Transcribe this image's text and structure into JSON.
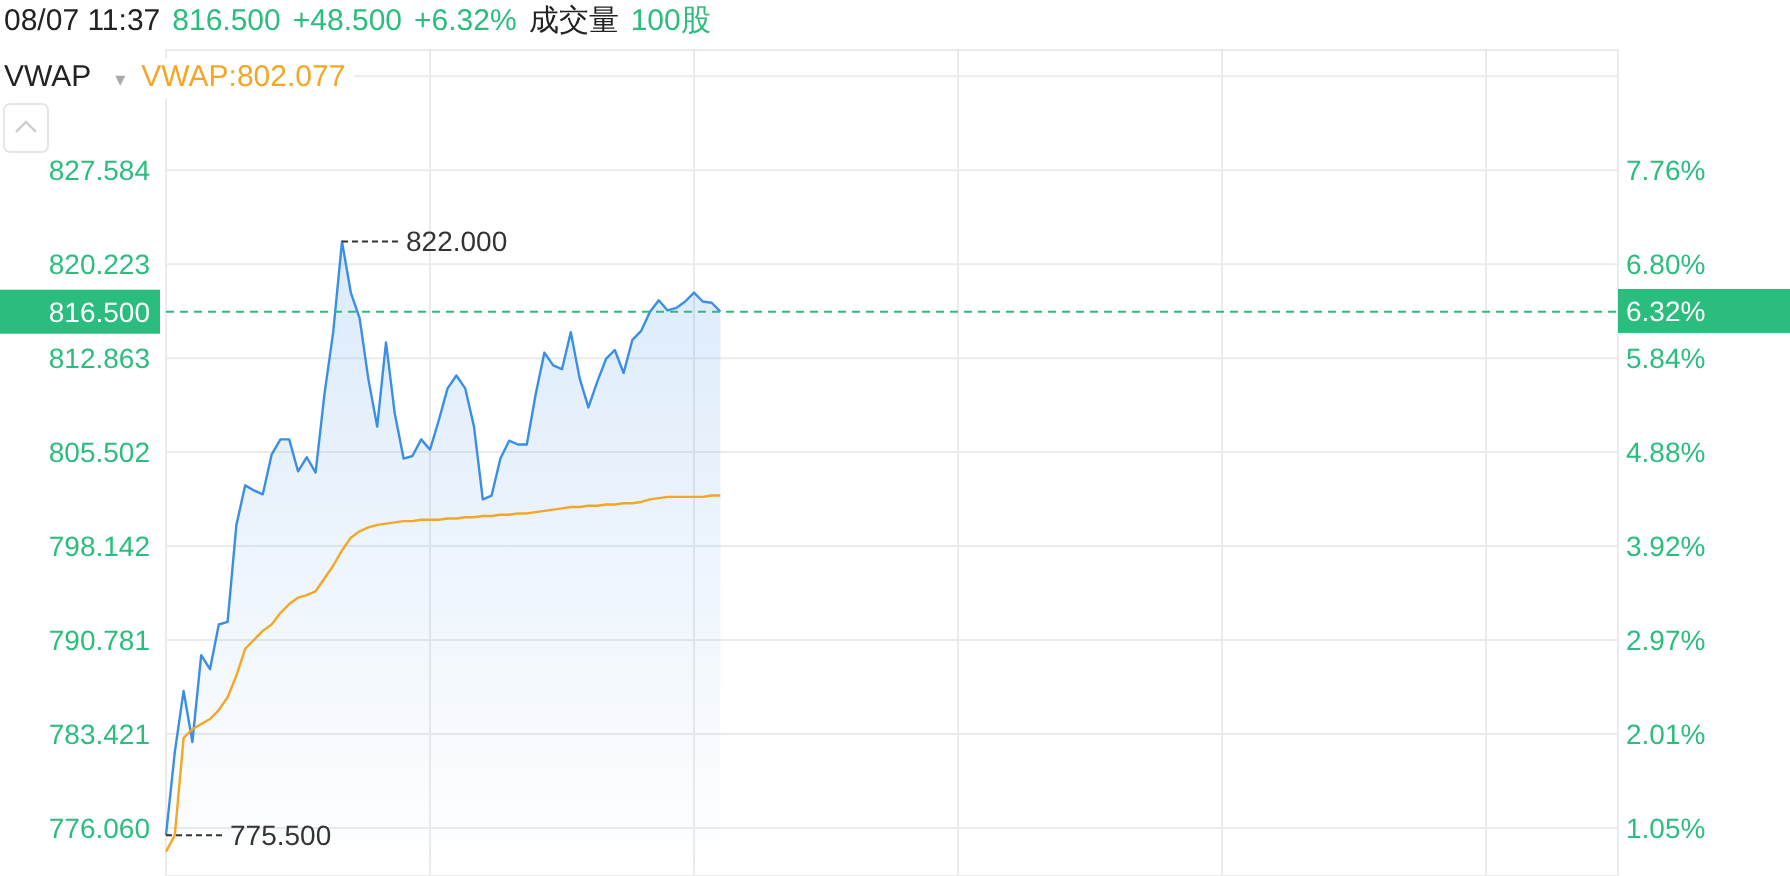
{
  "chart_data": {
    "type": "line",
    "title": "08/07 11:37",
    "annotations": [
      "816.500",
      "+48.500",
      "+6.32%",
      "成交量",
      "100股",
      "VWAP",
      "▾",
      "822.000",
      "775.500"
    ],
    "categories": [
      null,
      null,
      null,
      null,
      null,
      null,
      null,
      null,
      null,
      null,
      null,
      null,
      null,
      null,
      null,
      null,
      null,
      null,
      null,
      null,
      null,
      null,
      null,
      null,
      null,
      null,
      null,
      null,
      null,
      null,
      null,
      null,
      null,
      null,
      null,
      null,
      null,
      null,
      null,
      null,
      null,
      null,
      null,
      null,
      null,
      null,
      null,
      null,
      null,
      null,
      null,
      null,
      null,
      null,
      null,
      null,
      null,
      null,
      null,
      null,
      null,
      null,
      null,
      null,
      null,
      null,
      null,
      null,
      null,
      null,
      null,
      null,
      null,
      null,
      null,
      null,
      null,
      null,
      null,
      null,
      null,
      null,
      null,
      null,
      null,
      null,
      null,
      null,
      null,
      null,
      null,
      null,
      null,
      null,
      null,
      null,
      null,
      null,
      null,
      null,
      null,
      null,
      null,
      null,
      null,
      null,
      null,
      null,
      null,
      null,
      null,
      null,
      null,
      null,
      null,
      null,
      null,
      null,
      null,
      null,
      null,
      null,
      null,
      null,
      null,
      null,
      null,
      null,
      null,
      null,
      null,
      null,
      null,
      null,
      null,
      null,
      null,
      null,
      null,
      null,
      null,
      null,
      null,
      null,
      null,
      null,
      null,
      null,
      null,
      null,
      null,
      null,
      null,
      null,
      null,
      null,
      null,
      null,
      null,
      null,
      null,
      null,
      null,
      null,
      null,
      null
    ],
    "series": [
      {
        "type": "area",
        "color": "#3a8ee6",
        "values": [
          775.5,
          782.0,
          786.8,
          782.8,
          789.6,
          788.5,
          792.0,
          792.2,
          799.8,
          802.9,
          802.5,
          802.2,
          805.3,
          806.5,
          806.5,
          804.0,
          805.1,
          803.9,
          810.0,
          814.9,
          822.0,
          818.0,
          816.0,
          811.2,
          807.5,
          814.1,
          808.5,
          805.0,
          805.2,
          806.5,
          805.7,
          808.0,
          810.5,
          811.5,
          810.5,
          807.5,
          801.8,
          802.1,
          805.0,
          806.4,
          806.1,
          806.1,
          810.0,
          813.3,
          812.3,
          812.0,
          814.9,
          811.3,
          809.0,
          811.0,
          812.8,
          813.5,
          811.7,
          814.3,
          815.0,
          816.5,
          817.4,
          816.6,
          816.8,
          817.3,
          818.0,
          817.3,
          817.2,
          816.5,
          null,
          null,
          null,
          null,
          null,
          null,
          null,
          null,
          null,
          null,
          null,
          null,
          null,
          null,
          null,
          null,
          null,
          null,
          null,
          null,
          null,
          null,
          null,
          null,
          null,
          null,
          null,
          null,
          null,
          null,
          null,
          null,
          null,
          null,
          null,
          null,
          null,
          null,
          null,
          null,
          null,
          null,
          null,
          null,
          null,
          null,
          null,
          null,
          null,
          null,
          null,
          null,
          null,
          null,
          null,
          null,
          null,
          null,
          null,
          null,
          null,
          null,
          null,
          null,
          null,
          null,
          null,
          null,
          null,
          null,
          null,
          null,
          null,
          null,
          null,
          null,
          null,
          null,
          null,
          null,
          null,
          null,
          null,
          null,
          null,
          null,
          null,
          null,
          null,
          null,
          null,
          null,
          null,
          null,
          null,
          null,
          null,
          null,
          null,
          null,
          null,
          null
        ]
      },
      {
        "type": "line",
        "name": "VWAP:802.077",
        "color": "#f5a623",
        "values": [
          774.2,
          775.5,
          783.1,
          783.8,
          784.2,
          784.6,
          785.3,
          786.3,
          788.0,
          790.1,
          790.8,
          791.5,
          792.0,
          792.9,
          793.6,
          794.1,
          794.3,
          794.6,
          795.6,
          796.6,
          797.8,
          798.8,
          799.3,
          799.6,
          799.8,
          799.9,
          800.0,
          800.1,
          800.1,
          800.2,
          800.2,
          800.2,
          800.3,
          800.3,
          800.4,
          800.4,
          800.5,
          800.5,
          800.6,
          800.6,
          800.7,
          800.7,
          800.8,
          800.9,
          801.0,
          801.1,
          801.2,
          801.2,
          801.3,
          801.3,
          801.4,
          801.4,
          801.5,
          801.5,
          801.6,
          801.8,
          801.9,
          802.0,
          802.0,
          802.0,
          802.0,
          802.0,
          802.1,
          802.1,
          null,
          null,
          null,
          null,
          null,
          null,
          null,
          null,
          null,
          null,
          null,
          null,
          null,
          null,
          null,
          null,
          null,
          null,
          null,
          null,
          null,
          null,
          null,
          null,
          null,
          null,
          null,
          null,
          null,
          null,
          null,
          null,
          null,
          null,
          null,
          null,
          null,
          null,
          null,
          null,
          null,
          null,
          null,
          null,
          null,
          null,
          null,
          null,
          null,
          null,
          null,
          null,
          null,
          null,
          null,
          null,
          null,
          null,
          null,
          null,
          null,
          null,
          null,
          null,
          null,
          null,
          null,
          null,
          null,
          null,
          null,
          null,
          null,
          null,
          null,
          null,
          null,
          null,
          null,
          null,
          null,
          null,
          null,
          null,
          null,
          null,
          null,
          null,
          null,
          null,
          null,
          null,
          null,
          null,
          null,
          null,
          null,
          null,
          null,
          null,
          null,
          null
        ]
      }
    ],
    "ylim": [
      772.3,
      837.0
    ],
    "yticks": [
      {
        "value": 776.06,
        "label": "776.060"
      },
      {
        "value": 783.421,
        "label": "783.421"
      },
      {
        "value": 790.781,
        "label": "790.781"
      },
      {
        "value": 798.142,
        "label": "798.142"
      },
      {
        "value": 805.502,
        "label": "805.502"
      },
      {
        "value": 812.863,
        "label": "812.863"
      },
      {
        "value": 820.223,
        "label": "820.223"
      },
      {
        "value": 827.584,
        "label": "827.584"
      },
      {
        "value": 834.945,
        "label": null
      }
    ],
    "y2lim": [
      0.56,
      8.98
    ],
    "y2ticks": [
      {
        "value": 1.05,
        "label": "1.05%"
      },
      {
        "value": 2.01,
        "label": "2.01%"
      },
      {
        "value": 2.97,
        "label": "2.97%"
      },
      {
        "value": 3.92,
        "label": "3.92%"
      },
      {
        "value": 4.88,
        "label": "4.88%"
      },
      {
        "value": 5.84,
        "label": "5.84%"
      },
      {
        "value": 6.32,
        "label": "6.32%"
      },
      {
        "value": 6.8,
        "label": "6.80%"
      },
      {
        "value": 7.76,
        "label": "7.76%"
      }
    ],
    "ref_lines": [
      {
        "axis": "y",
        "value": 816.5,
        "label": "816.500",
        "color": "#2bbd7e",
        "line_style": "dashed"
      }
    ],
    "grid": true,
    "legend": "top left"
  }
}
